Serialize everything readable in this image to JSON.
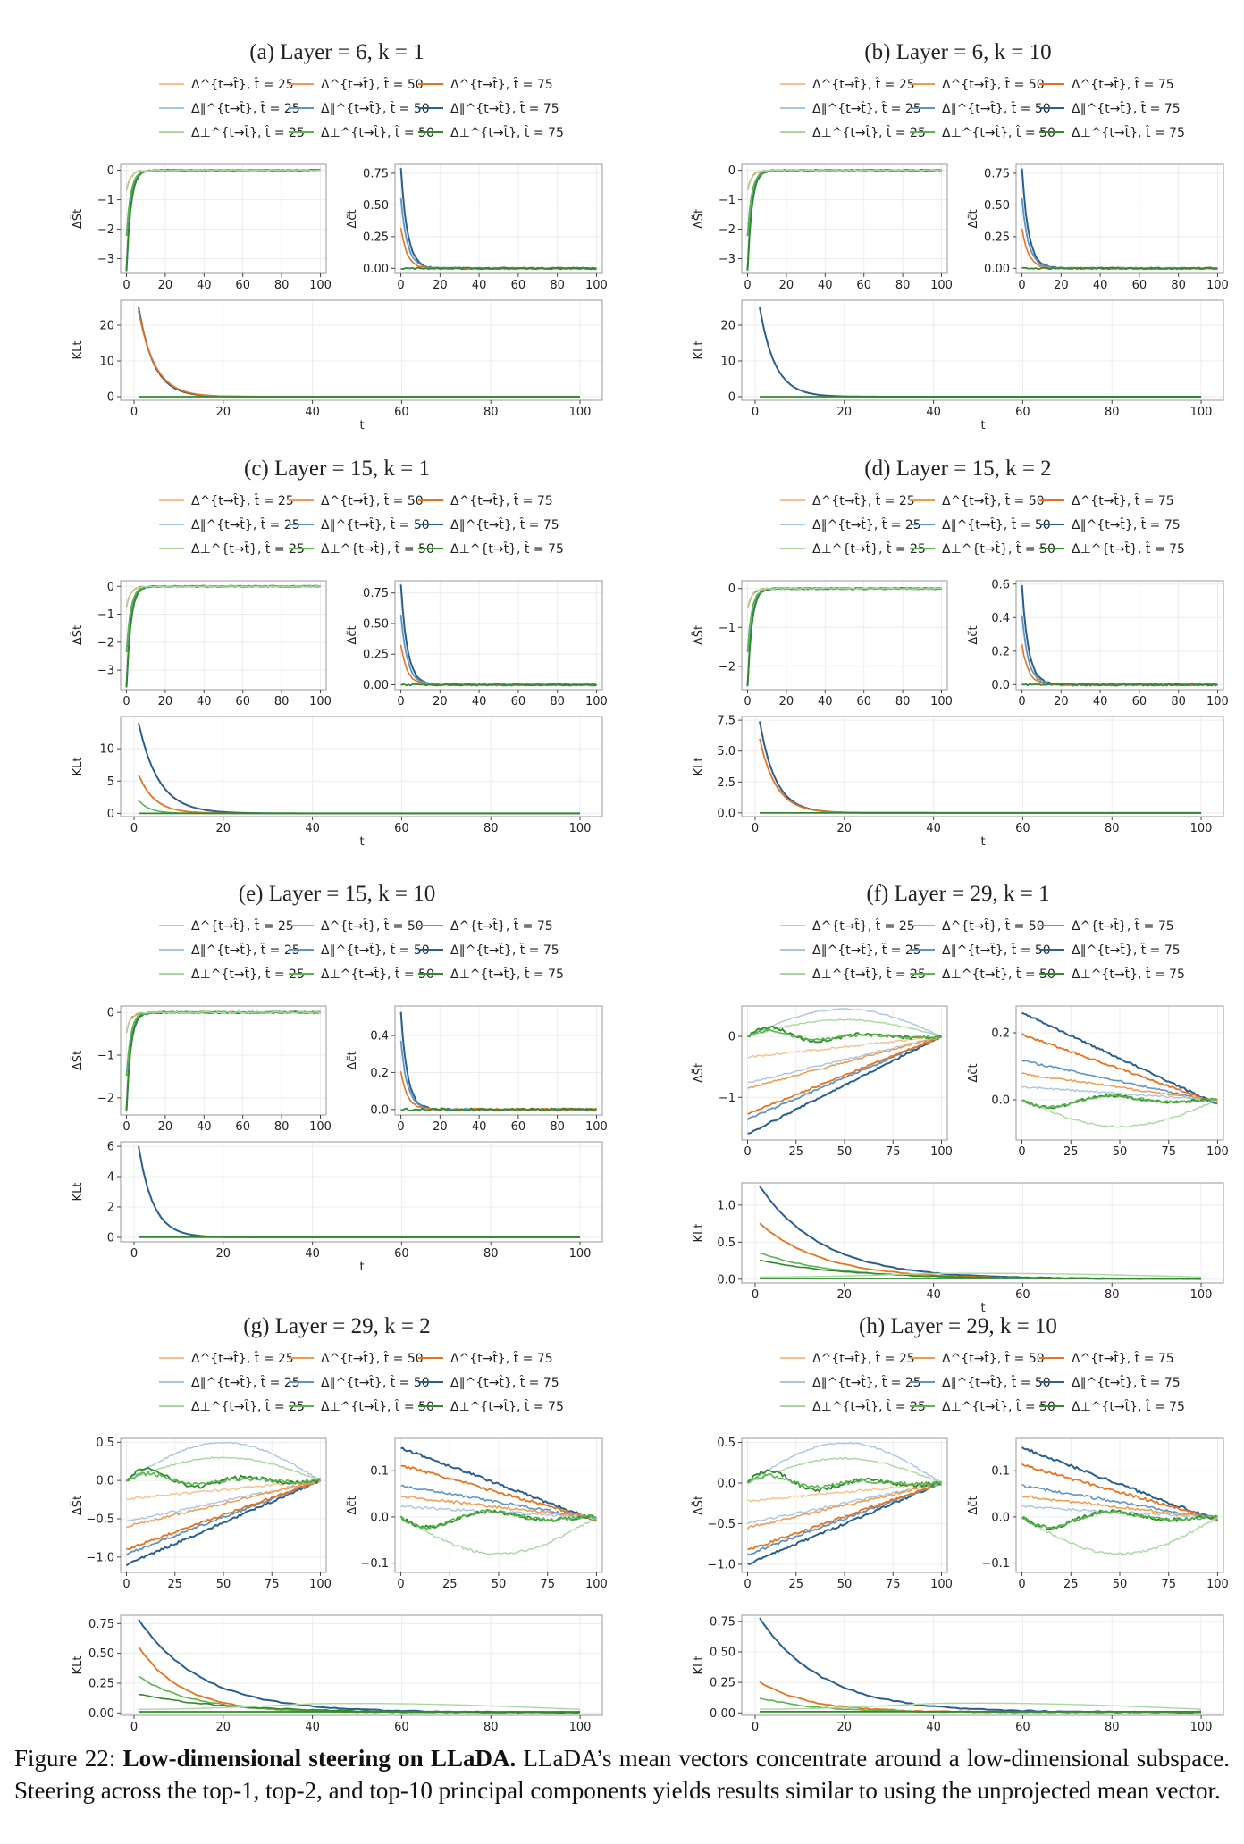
{
  "legend_entries": [
    {
      "label": "Δ^{t→t̂}, t̂ = 25",
      "color": "#f6c08a",
      "width": 1.4
    },
    {
      "label": "Δ^{t→t̂}, t̂ = 50",
      "color": "#f09a4e",
      "width": 1.6
    },
    {
      "label": "Δ^{t→t̂}, t̂ = 75",
      "color": "#e6731e",
      "width": 1.8
    },
    {
      "label": "Δ∥^{t→t̂}, t̂ = 25",
      "color": "#a9c6e0",
      "width": 1.4
    },
    {
      "label": "Δ∥^{t→t̂}, t̂ = 50",
      "color": "#5d95c5",
      "width": 1.6
    },
    {
      "label": "Δ∥^{t→t̂}, t̂ = 75",
      "color": "#2b5f8e",
      "width": 1.8
    },
    {
      "label": "Δ⊥^{t→t̂}, t̂ = 25",
      "color": "#a8d8a0",
      "width": 1.4
    },
    {
      "label": "Δ⊥^{t→t̂}, t̂ = 50",
      "color": "#5ab54f",
      "width": 1.6
    },
    {
      "label": "Δ⊥^{t→t̂}, t̂ = 75",
      "color": "#2f8a2a",
      "width": 1.8
    }
  ],
  "labels": {
    "ds": "ΔS̃t",
    "dc": "Δc̃t",
    "kl": "KLt",
    "t": "t"
  },
  "chart_data": [
    {
      "type": "line",
      "title": "(a) Layer = 6, k = 1",
      "kind": "fast",
      "ds": {
        "ylim": [
          -3.5,
          0.2
        ],
        "yticks": [
          0,
          -1,
          -2,
          -3
        ],
        "ticklabels": [
          "0",
          "−1",
          "−2",
          "−3"
        ],
        "xticks": [
          0,
          20,
          40,
          60,
          80,
          100
        ]
      },
      "dc": {
        "ylim": [
          -0.04,
          0.82
        ],
        "yticks": [
          0,
          0.25,
          0.5,
          0.75
        ],
        "ticklabels": [
          "0.00",
          "0.25",
          "0.50",
          "0.75"
        ],
        "xticks": [
          0,
          20,
          40,
          60,
          80,
          100
        ]
      },
      "kl": {
        "ylim": [
          -1,
          27
        ],
        "yticks": [
          0,
          10,
          20
        ],
        "ticklabels": [
          "0",
          "10",
          "20"
        ],
        "xticks": [
          0,
          20,
          40,
          60,
          80,
          100
        ],
        "series": [
          {
            "v0": 25,
            "decay": 0.29
          },
          {
            "v0": 24,
            "decay": 0.27
          }
        ]
      }
    },
    {
      "type": "line",
      "title": "(b) Layer = 6, k = 10",
      "kind": "fast",
      "ds": {
        "ylim": [
          -3.5,
          0.2
        ],
        "yticks": [
          0,
          -1,
          -2,
          -3
        ],
        "ticklabels": [
          "0",
          "−1",
          "−2",
          "−3"
        ],
        "xticks": [
          0,
          20,
          40,
          60,
          80,
          100
        ]
      },
      "dc": {
        "ylim": [
          -0.04,
          0.82
        ],
        "yticks": [
          0,
          0.25,
          0.5,
          0.75
        ],
        "ticklabels": [
          "0.00",
          "0.25",
          "0.50",
          "0.75"
        ],
        "xticks": [
          0,
          20,
          40,
          60,
          80,
          100
        ]
      },
      "kl": {
        "ylim": [
          -1,
          27
        ],
        "yticks": [
          0,
          10,
          20
        ],
        "ticklabels": [
          "0",
          "10",
          "20"
        ],
        "xticks": [
          0,
          20,
          40,
          60,
          80,
          100
        ],
        "series": [
          {
            "v0": 25,
            "decay": 0.29
          }
        ]
      }
    },
    {
      "type": "line",
      "title": "(c) Layer = 15, k = 1",
      "kind": "fast",
      "ds": {
        "ylim": [
          -3.7,
          0.2
        ],
        "yticks": [
          0,
          -1,
          -2,
          -3
        ],
        "ticklabels": [
          "0",
          "−1",
          "−2",
          "−3"
        ],
        "xticks": [
          0,
          20,
          40,
          60,
          80,
          100
        ]
      },
      "dc": {
        "ylim": [
          -0.04,
          0.85
        ],
        "yticks": [
          0,
          0.25,
          0.5,
          0.75
        ],
        "ticklabels": [
          "0.00",
          "0.25",
          "0.50",
          "0.75"
        ],
        "xticks": [
          0,
          20,
          40,
          60,
          80,
          100
        ]
      },
      "kl": {
        "ylim": [
          -0.5,
          15
        ],
        "yticks": [
          0,
          5,
          10
        ],
        "ticklabels": [
          "0",
          "5",
          "10"
        ],
        "xticks": [
          0,
          20,
          40,
          60,
          80,
          100
        ],
        "series": [
          {
            "v0": 14,
            "decay": 0.22
          },
          {
            "v0": 6,
            "decay": 0.28
          },
          {
            "v0": 2,
            "decay": 0.4
          }
        ]
      }
    },
    {
      "type": "line",
      "title": "(d) Layer = 15, k = 2",
      "kind": "fast",
      "ds": {
        "ylim": [
          -2.6,
          0.2
        ],
        "yticks": [
          0,
          -1,
          -2
        ],
        "ticklabels": [
          "0",
          "−1",
          "−2"
        ],
        "xticks": [
          0,
          20,
          40,
          60,
          80,
          100
        ]
      },
      "dc": {
        "ylim": [
          -0.03,
          0.62
        ],
        "yticks": [
          0,
          0.2,
          0.4,
          0.6
        ],
        "ticklabels": [
          "0.0",
          "0.2",
          "0.4",
          "0.6"
        ],
        "xticks": [
          0,
          20,
          40,
          60,
          80,
          100
        ]
      },
      "kl": {
        "ylim": [
          -0.3,
          7.8
        ],
        "yticks": [
          0,
          2.5,
          5,
          7.5
        ],
        "ticklabels": [
          "0.0",
          "2.5",
          "5.0",
          "7.5"
        ],
        "xticks": [
          0,
          20,
          40,
          60,
          80,
          100
        ],
        "series": [
          {
            "v0": 7.4,
            "decay": 0.28
          },
          {
            "v0": 6,
            "decay": 0.27
          }
        ]
      }
    },
    {
      "type": "line",
      "title": "(e) Layer = 15, k = 10",
      "kind": "fast",
      "ds": {
        "ylim": [
          -2.4,
          0.15
        ],
        "yticks": [
          0,
          -1,
          -2
        ],
        "ticklabels": [
          "0",
          "−1",
          "−2"
        ],
        "xticks": [
          0,
          20,
          40,
          60,
          80,
          100
        ]
      },
      "dc": {
        "ylim": [
          -0.03,
          0.56
        ],
        "yticks": [
          0,
          0.2,
          0.4
        ],
        "ticklabels": [
          "0.0",
          "0.2",
          "0.4"
        ],
        "xticks": [
          0,
          20,
          40,
          60,
          80,
          100
        ]
      },
      "kl": {
        "ylim": [
          -0.3,
          6.3
        ],
        "yticks": [
          0,
          2,
          4,
          6
        ],
        "ticklabels": [
          "0",
          "2",
          "4",
          "6"
        ],
        "xticks": [
          0,
          20,
          40,
          60,
          80,
          100
        ],
        "series": [
          {
            "v0": 6,
            "decay": 0.3
          }
        ]
      }
    },
    {
      "type": "line",
      "title": "(f) Layer = 29, k = 1",
      "kind": "slow",
      "ds": {
        "ylim": [
          -1.7,
          0.5
        ],
        "yticks": [
          0,
          -1
        ],
        "ticklabels": [
          "0",
          "−1"
        ],
        "xticks": [
          0,
          25,
          50,
          75,
          100
        ]
      },
      "dc": {
        "ylim": [
          -0.12,
          0.28
        ],
        "yticks": [
          0,
          0.2
        ],
        "ticklabels": [
          "0.0",
          "0.2"
        ],
        "xticks": [
          0,
          25,
          50,
          75,
          100
        ]
      },
      "kl": {
        "ylim": [
          -0.05,
          1.3
        ],
        "yticks": [
          0,
          0.5,
          1.0
        ],
        "ticklabels": [
          "0.0",
          "0.5",
          "1.0"
        ],
        "xticks": [
          0,
          20,
          40,
          60,
          80,
          100
        ],
        "series": [
          {
            "v0": 1.25,
            "decay": 0.07
          },
          {
            "v0": 0.75,
            "decay": 0.07
          },
          {
            "v0": 0.35,
            "decay": 0.06
          },
          {
            "v0": 0.25,
            "decay": 0.05
          }
        ]
      }
    },
    {
      "type": "line",
      "title": "(g) Layer = 29, k = 2",
      "kind": "slow",
      "ds": {
        "ylim": [
          -1.2,
          0.55
        ],
        "yticks": [
          0.5,
          0,
          -0.5,
          -1.0
        ],
        "ticklabels": [
          "0.5",
          "0.0",
          "−0.5",
          "−1.0"
        ],
        "xticks": [
          0,
          25,
          50,
          75,
          100
        ]
      },
      "dc": {
        "ylim": [
          -0.12,
          0.17
        ],
        "yticks": [
          0.1,
          0,
          -0.1
        ],
        "ticklabels": [
          "0.1",
          "0.0",
          "−0.1"
        ],
        "xticks": [
          0,
          25,
          50,
          75,
          100
        ]
      },
      "kl": {
        "ylim": [
          -0.02,
          0.82
        ],
        "yticks": [
          0,
          0.25,
          0.5,
          0.75
        ],
        "ticklabels": [
          "0.00",
          "0.25",
          "0.50",
          "0.75"
        ],
        "xticks": [
          0,
          20,
          40,
          60,
          80,
          100
        ],
        "series": [
          {
            "v0": 0.78,
            "decay": 0.07
          },
          {
            "v0": 0.55,
            "decay": 0.1
          },
          {
            "v0": 0.3,
            "decay": 0.08
          },
          {
            "v0": 0.15,
            "decay": 0.05
          }
        ]
      }
    },
    {
      "type": "line",
      "title": "(h) Layer = 29, k = 10",
      "kind": "slow",
      "ds": {
        "ylim": [
          -1.1,
          0.55
        ],
        "yticks": [
          0.5,
          0,
          -0.5,
          -1.0
        ],
        "ticklabels": [
          "0.5",
          "0.0",
          "−0.5",
          "−1.0"
        ],
        "xticks": [
          0,
          25,
          50,
          75,
          100
        ]
      },
      "dc": {
        "ylim": [
          -0.12,
          0.17
        ],
        "yticks": [
          0.1,
          0,
          -0.1
        ],
        "ticklabels": [
          "0.1",
          "0.0",
          "−0.1"
        ],
        "xticks": [
          0,
          25,
          50,
          75,
          100
        ]
      },
      "kl": {
        "ylim": [
          -0.02,
          0.8
        ],
        "yticks": [
          0,
          0.25,
          0.5,
          0.75
        ],
        "ticklabels": [
          "0.00",
          "0.25",
          "0.50",
          "0.75"
        ],
        "xticks": [
          0,
          20,
          40,
          60,
          80,
          100
        ],
        "series": [
          {
            "v0": 0.77,
            "decay": 0.07
          },
          {
            "v0": 0.25,
            "decay": 0.09
          },
          {
            "v0": 0.12,
            "decay": 0.08
          }
        ]
      }
    }
  ],
  "caption": {
    "prefix": "Figure 22: ",
    "bold": "Low-dimensional steering on LLaDA.",
    "rest": " LLaDA’s mean vectors concentrate around a low-dimensional subspace. Steering across the top-1, top-2, and top-10 principal components yields results similar to using the unprojected mean vector."
  }
}
